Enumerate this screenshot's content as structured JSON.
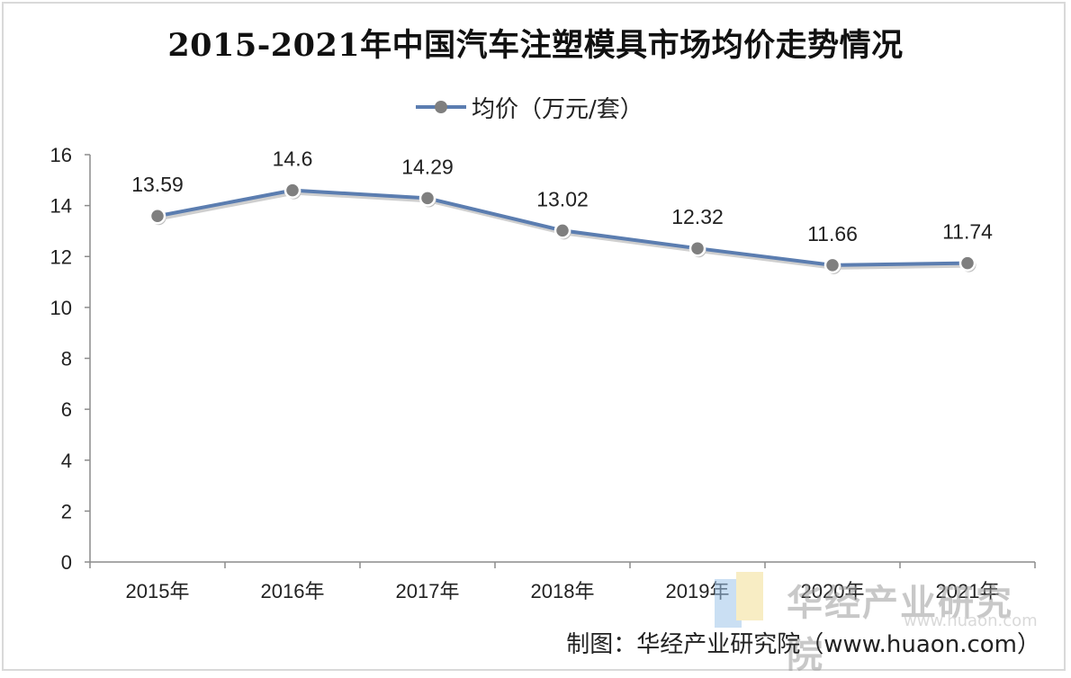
{
  "chart_data": {
    "type": "line",
    "title": "2015-2021年中国汽车注塑模具市场均价走势情况",
    "categories": [
      "2015年",
      "2016年",
      "2017年",
      "2018年",
      "2019年",
      "2020年",
      "2021年"
    ],
    "series": [
      {
        "name": "均价（万元/套）",
        "values": [
          13.59,
          14.6,
          14.29,
          13.02,
          12.32,
          11.66,
          11.74
        ]
      }
    ],
    "ylim": [
      0,
      16
    ],
    "yticks": [
      0,
      2,
      4,
      6,
      8,
      10,
      12,
      14,
      16
    ],
    "grid": false,
    "legend_position": "top-center",
    "colors": {
      "line": "#5b7db0",
      "marker": "#7f7f7f",
      "marker_border": "#ffffff",
      "axis": "#8c8c8c"
    }
  },
  "source": "制图：华经产业研究院（www.huaon.com）",
  "watermark": {
    "text": "华经产业研究院",
    "url": "www.huaon.com"
  }
}
